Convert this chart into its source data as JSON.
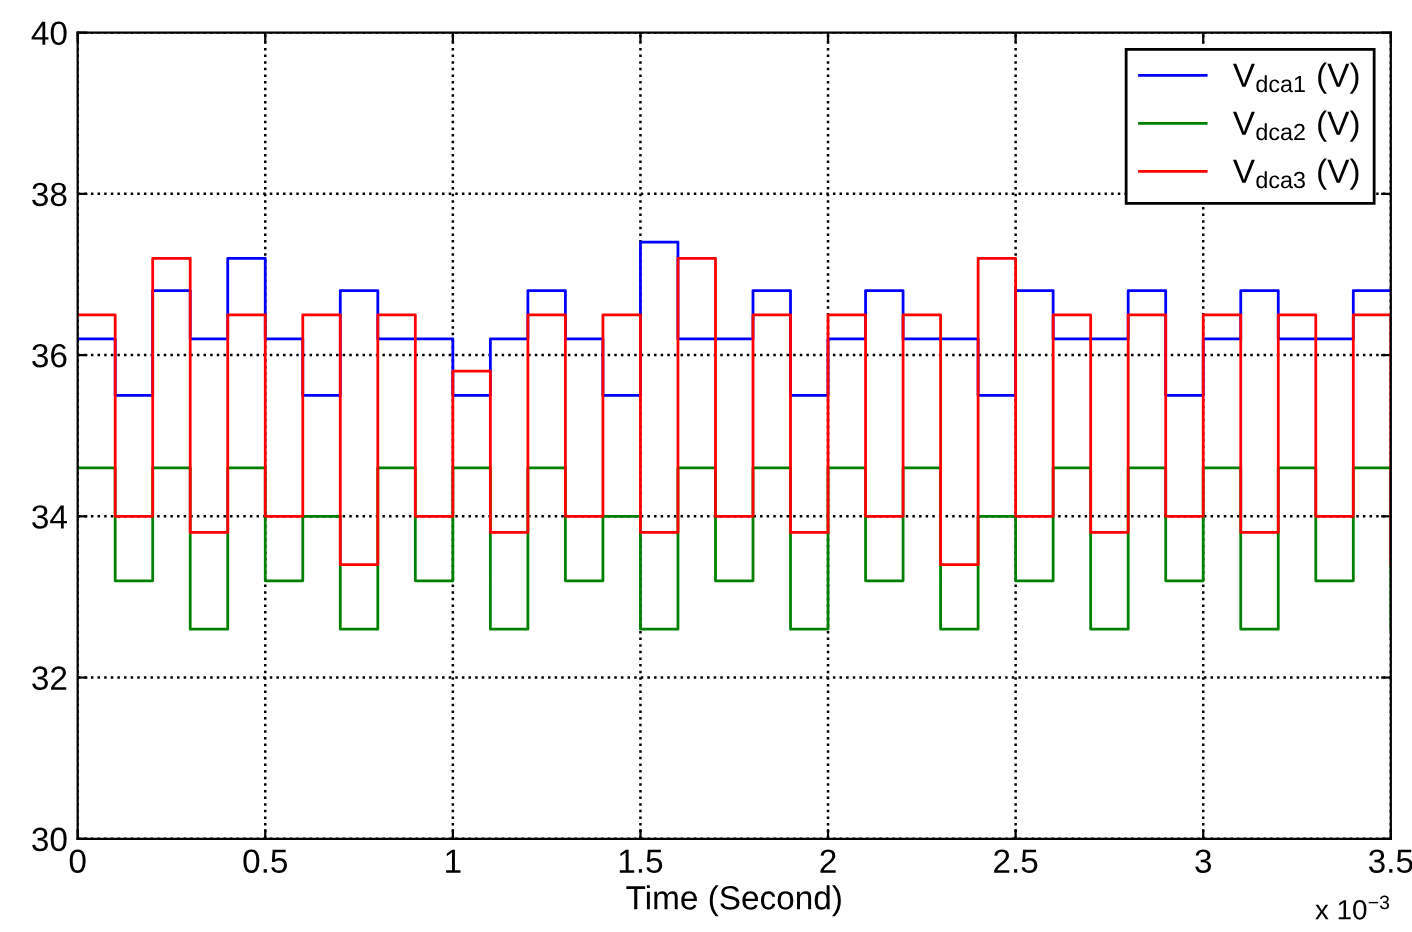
{
  "chart_data": {
    "type": "step",
    "xlabel": "Time (Second)",
    "annotations": [
      "x 10$^{−3}$"
    ],
    "x": [
      0,
      0.1,
      0.2,
      0.3,
      0.4,
      0.5,
      0.6,
      0.7,
      0.8,
      0.9,
      1.0,
      1.1,
      1.2,
      1.3,
      1.4,
      1.5,
      1.6,
      1.7,
      1.8,
      1.9,
      2.0,
      2.1,
      2.2,
      2.3,
      2.4,
      2.5,
      2.6,
      2.7,
      2.8,
      2.9,
      3.0,
      3.1,
      3.2,
      3.3,
      3.4,
      3.5
    ],
    "series": [
      {
        "name": "V$_{dca1}$ (V)",
        "color": "#0000ff",
        "values": [
          36.2,
          35.5,
          36.8,
          36.2,
          37.2,
          36.2,
          35.5,
          36.8,
          36.2,
          36.2,
          35.5,
          36.2,
          36.8,
          36.2,
          35.5,
          37.4,
          36.2,
          36.2,
          36.8,
          35.5,
          36.2,
          36.8,
          36.2,
          36.2,
          35.5,
          36.8,
          36.2,
          36.2,
          36.8,
          35.5,
          36.2,
          36.8,
          36.2,
          36.2,
          36.8,
          36.8
        ]
      },
      {
        "name": "V$_{dca2}$ (V)",
        "color": "#008000",
        "values": [
          34.6,
          33.2,
          34.6,
          32.6,
          34.6,
          33.2,
          34.0,
          32.6,
          34.6,
          33.2,
          34.6,
          32.6,
          34.6,
          33.2,
          34.0,
          32.6,
          34.6,
          33.2,
          34.6,
          32.6,
          34.6,
          33.2,
          34.6,
          32.6,
          34.0,
          33.2,
          34.6,
          32.6,
          34.6,
          33.2,
          34.6,
          32.6,
          34.6,
          33.2,
          34.6,
          32.6
        ]
      },
      {
        "name": "V$_{dca3}$ (V)",
        "color": "#ff0000",
        "values": [
          36.5,
          34.0,
          37.2,
          33.8,
          36.5,
          34.0,
          36.5,
          33.4,
          36.5,
          34.0,
          35.8,
          33.8,
          36.5,
          34.0,
          36.5,
          33.8,
          37.2,
          34.0,
          36.5,
          33.8,
          36.5,
          34.0,
          36.5,
          33.4,
          37.2,
          34.0,
          36.5,
          33.8,
          36.5,
          34.0,
          36.5,
          33.8,
          36.5,
          34.0,
          36.5,
          33.4
        ]
      }
    ],
    "xlim": [
      0,
      3.5
    ],
    "xticks": [
      0,
      0.5,
      1,
      1.5,
      2,
      2.5,
      3,
      3.5
    ],
    "ylim": [
      30,
      40
    ],
    "yticks": [
      30,
      32,
      34,
      36,
      38,
      40
    ],
    "grid": true,
    "legend": "top right"
  }
}
